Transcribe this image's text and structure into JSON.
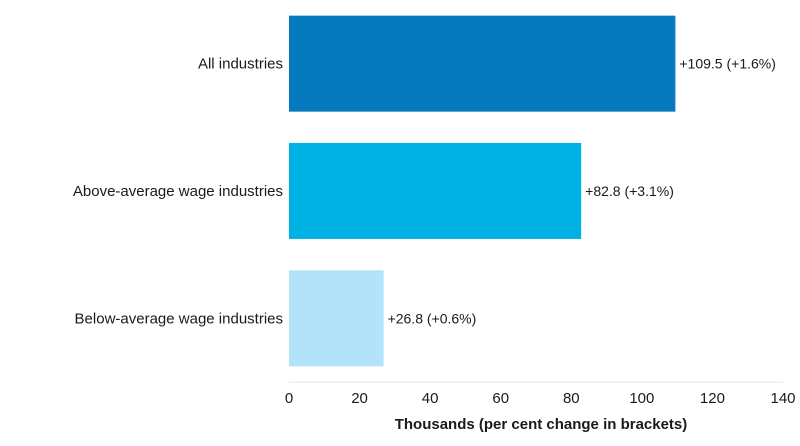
{
  "chart_data": {
    "type": "bar",
    "orientation": "horizontal",
    "categories": [
      "All industries",
      "Above-average wage industries",
      "Below-average wage industries"
    ],
    "values": [
      109.5,
      82.8,
      26.8
    ],
    "data_labels": [
      "+109.5 (+1.6%)",
      "+82.8 (+3.1%)",
      "+26.8 (+0.6%)"
    ],
    "bar_colors": [
      "#0779bf",
      "#00b2e3",
      "#b3e2fb"
    ],
    "xlim": [
      0,
      140
    ],
    "x_ticks": [
      0,
      20,
      40,
      60,
      80,
      100,
      120,
      140
    ],
    "tick_labels": [
      "0",
      "20",
      "40",
      "60",
      "80",
      "100",
      "120",
      "140"
    ],
    "xlabel": "Thousands (per cent change in brackets)",
    "ylabel": "",
    "title": "",
    "grid": false
  }
}
